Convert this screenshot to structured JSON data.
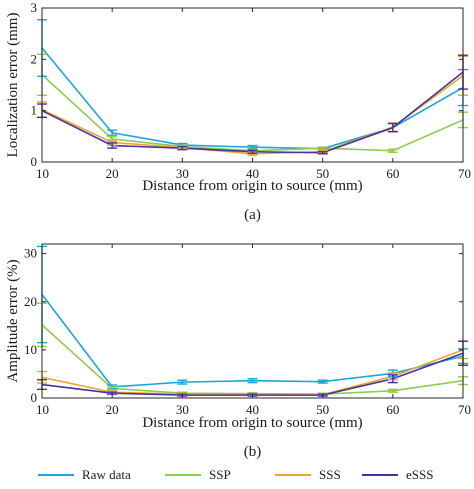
{
  "chart_data": [
    {
      "type": "line",
      "panel_label": "(a)",
      "xlabel": "Distance from origin to source (mm)",
      "ylabel": "Localization error (mm)",
      "x": [
        10,
        20,
        30,
        40,
        50,
        60,
        70
      ],
      "xlim": [
        10,
        70
      ],
      "ylim": [
        0,
        3
      ],
      "yticks": [
        0,
        1,
        2,
        3
      ],
      "xtick_labels": [
        "10",
        "20",
        "30",
        "40",
        "50",
        "60",
        "70"
      ],
      "ytick_labels": [
        "0",
        "1",
        "2",
        "3"
      ],
      "grid": false,
      "series": [
        {
          "name": "Raw data",
          "color": "#1aa7d8",
          "values": [
            2.22,
            0.57,
            0.33,
            0.29,
            0.26,
            0.67,
            1.45
          ],
          "err": [
            0.55,
            0.05,
            0.03,
            0.03,
            0.02,
            0.08,
            0.35
          ]
        },
        {
          "name": "SSP",
          "color": "#8fcc4f",
          "values": [
            1.7,
            0.45,
            0.3,
            0.22,
            0.27,
            0.22,
            0.82
          ],
          "err": [
            0.4,
            0.05,
            0.03,
            0.03,
            0.02,
            0.03,
            0.15
          ]
        },
        {
          "name": "SSS",
          "color": "#e6a82e",
          "values": [
            1.02,
            0.38,
            0.28,
            0.16,
            0.2,
            0.68,
            1.68
          ],
          "err": [
            0.15,
            0.05,
            0.03,
            0.03,
            0.02,
            0.08,
            0.38
          ]
        },
        {
          "name": "eSSS",
          "color": "#4a2fa0",
          "values": [
            1.0,
            0.32,
            0.27,
            0.2,
            0.18,
            0.67,
            1.75
          ],
          "err": [
            0.13,
            0.05,
            0.03,
            0.03,
            0.02,
            0.08,
            0.33
          ]
        }
      ]
    },
    {
      "type": "line",
      "panel_label": "(b)",
      "xlabel": "Distance from origin to source (mm)",
      "ylabel": "Amplitude error (%)",
      "x": [
        10,
        20,
        30,
        40,
        50,
        60,
        70
      ],
      "xlim": [
        10,
        70
      ],
      "ylim": [
        0,
        32
      ],
      "yticks": [
        0,
        10,
        20,
        30
      ],
      "xtick_labels": [
        "10",
        "20",
        "30",
        "40",
        "50",
        "60",
        "70"
      ],
      "ytick_labels": [
        "0",
        "10",
        "20",
        "30"
      ],
      "grid": false,
      "series": [
        {
          "name": "Raw data",
          "color": "#1aa7d8",
          "values": [
            21.5,
            2.3,
            3.3,
            3.6,
            3.4,
            5.1,
            8.7
          ],
          "err": [
            10,
            0.4,
            0.4,
            0.4,
            0.3,
            0.7,
            1.5
          ]
        },
        {
          "name": "SSP",
          "color": "#8fcc4f",
          "values": [
            15.2,
            2.0,
            1.0,
            0.9,
            0.8,
            1.5,
            3.6
          ],
          "err": [
            4.5,
            0.3,
            0.2,
            0.2,
            0.2,
            0.3,
            0.8
          ]
        },
        {
          "name": "SSS",
          "color": "#e6a82e",
          "values": [
            4.3,
            1.2,
            0.8,
            0.7,
            0.7,
            4.5,
            10.0
          ],
          "err": [
            1.2,
            0.2,
            0.2,
            0.2,
            0.2,
            0.7,
            1.8
          ]
        },
        {
          "name": "eSSS",
          "color": "#4a2fa0",
          "values": [
            2.8,
            1.0,
            0.6,
            0.6,
            0.6,
            4.0,
            9.3
          ],
          "err": [
            1.0,
            0.2,
            0.2,
            0.2,
            0.2,
            0.8,
            2.5
          ]
        }
      ]
    }
  ],
  "legend": {
    "placement": "bottom",
    "items": [
      {
        "label": "Raw data",
        "color": "#1aa7d8"
      },
      {
        "label": "SSP",
        "color": "#8fcc4f"
      },
      {
        "label": "SSS",
        "color": "#e6a82e"
      },
      {
        "label": "eSSS",
        "color": "#4a2fa0"
      }
    ]
  }
}
